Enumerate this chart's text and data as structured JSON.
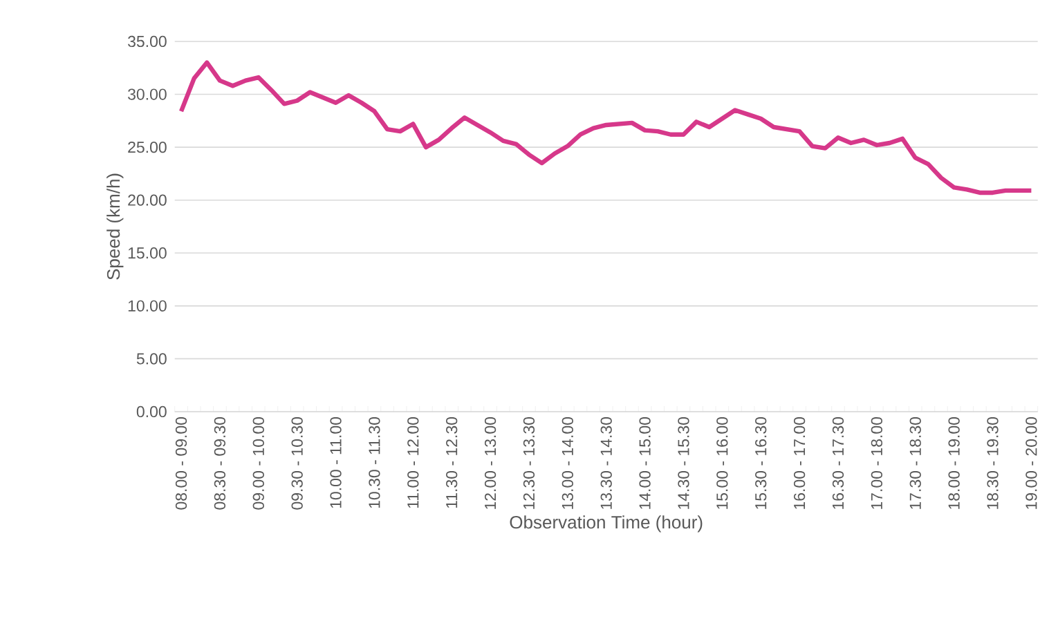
{
  "chart_data": {
    "type": "line",
    "xlabel": "Observation Time (hour)",
    "ylabel": "Speed (km/h)",
    "categories": [
      "08.00 - 09.00",
      null,
      null,
      "08.30 - 09.30",
      null,
      null,
      "09.00 - 10.00",
      null,
      null,
      "09.30 - 10.30",
      null,
      null,
      "10.00 - 11.00",
      null,
      null,
      "10.30 - 11.30",
      null,
      null,
      "11.00 - 12.00",
      null,
      null,
      "11.30 - 12.30",
      null,
      null,
      "12.00 - 13.00",
      null,
      null,
      "12.30 - 13.30",
      null,
      null,
      "13.00 - 14.00",
      null,
      null,
      "13.30 - 14.30",
      null,
      null,
      "14.00 - 15.00",
      null,
      null,
      "14.30 - 15.30",
      null,
      null,
      "15.00 - 16.00",
      null,
      null,
      "15.30 - 16.30",
      null,
      null,
      "16.00 - 17.00",
      null,
      null,
      "16.30 - 17.30",
      null,
      null,
      "17.00 - 18.00",
      null,
      null,
      "17.30 - 18.30",
      null,
      null,
      "18.00 - 19.00",
      null,
      null,
      "18.30 - 19.30",
      null,
      null,
      "19.00 - 20.00"
    ],
    "series": [
      {
        "color": "#d6388a",
        "values": [
          28.4,
          31.5,
          33.0,
          31.3,
          30.8,
          31.3,
          31.6,
          30.4,
          29.1,
          29.4,
          30.2,
          29.7,
          29.2,
          29.9,
          29.2,
          28.4,
          26.7,
          26.5,
          27.2,
          25.0,
          25.7,
          26.8,
          27.8,
          27.1,
          26.4,
          25.6,
          25.3,
          24.3,
          23.5,
          24.4,
          25.1,
          26.2,
          26.8,
          27.1,
          27.2,
          27.3,
          26.6,
          26.5,
          26.2,
          26.2,
          27.4,
          26.9,
          27.7,
          28.5,
          28.1,
          27.7,
          26.9,
          26.7,
          26.5,
          25.1,
          24.9,
          25.9,
          25.4,
          25.7,
          25.2,
          25.4,
          25.8,
          24.0,
          23.4,
          22.1,
          21.2,
          21.0,
          20.7,
          20.7,
          20.9,
          20.9,
          20.9
        ]
      }
    ],
    "ylim": [
      0,
      35
    ],
    "yticks": [
      {
        "value": 0,
        "label": "0.00"
      },
      {
        "value": 5,
        "label": "5.00"
      },
      {
        "value": 10,
        "label": "10.00"
      },
      {
        "value": 15,
        "label": "15.00"
      },
      {
        "value": 20,
        "label": "20.00"
      },
      {
        "value": 25,
        "label": "25.00"
      },
      {
        "value": 30,
        "label": "30.00"
      },
      {
        "value": 35,
        "label": "35.00"
      }
    ],
    "grid": "y"
  }
}
